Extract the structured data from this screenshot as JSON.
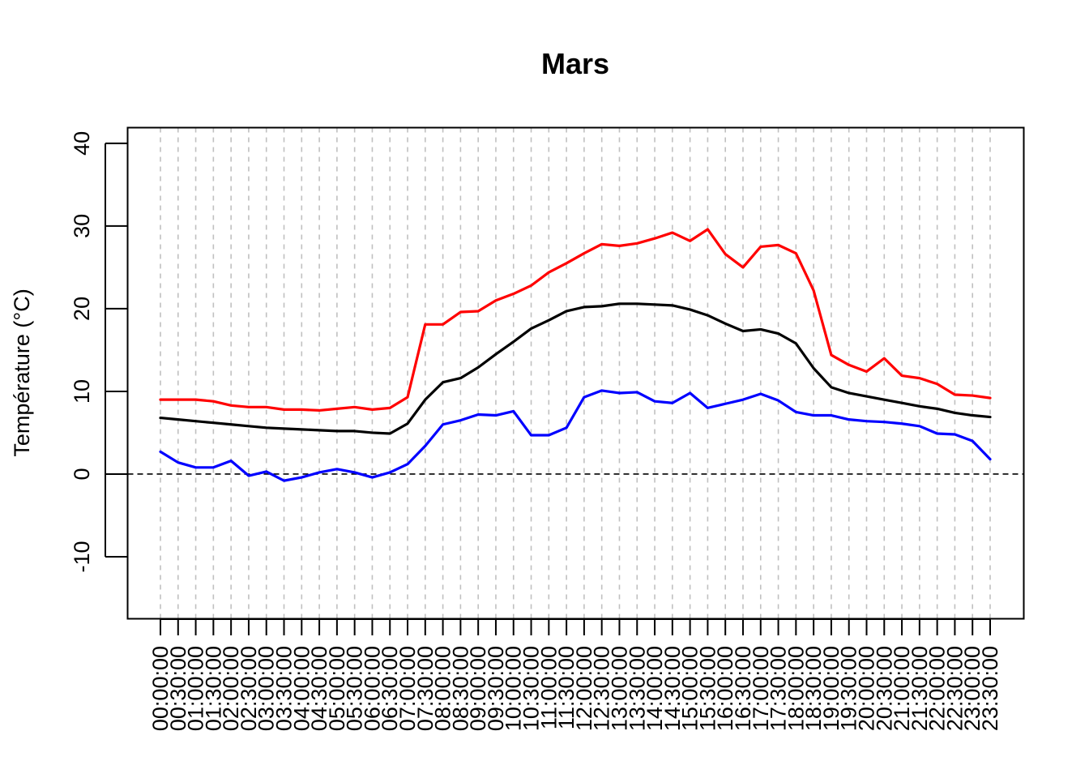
{
  "chart_data": {
    "type": "line",
    "title": "Mars",
    "xlabel": "",
    "ylabel": "Température (°C)",
    "ylim": [
      -17.5,
      41.9
    ],
    "yticks": [
      -10,
      0,
      10,
      20,
      30,
      40
    ],
    "zero_line": 0,
    "vertical_grid": true,
    "x": [
      "00:00:00",
      "00:30:00",
      "01:00:00",
      "01:30:00",
      "02:00:00",
      "02:30:00",
      "03:00:00",
      "03:30:00",
      "04:00:00",
      "04:30:00",
      "05:00:00",
      "05:30:00",
      "06:00:00",
      "06:30:00",
      "07:00:00",
      "07:30:00",
      "08:00:00",
      "08:30:00",
      "09:00:00",
      "09:30:00",
      "10:00:00",
      "10:30:00",
      "11:00:00",
      "11:30:00",
      "12:00:00",
      "12:30:00",
      "13:00:00",
      "13:30:00",
      "14:00:00",
      "14:30:00",
      "15:00:00",
      "15:30:00",
      "16:00:00",
      "16:30:00",
      "17:00:00",
      "17:30:00",
      "18:00:00",
      "18:30:00",
      "19:00:00",
      "19:30:00",
      "20:00:00",
      "20:30:00",
      "21:00:00",
      "21:30:00",
      "22:00:00",
      "22:30:00",
      "23:00:00",
      "23:30:00"
    ],
    "series": [
      {
        "color": "#ff0000",
        "values": [
          9.0,
          9.0,
          9.0,
          8.8,
          8.3,
          8.1,
          8.1,
          7.8,
          7.8,
          7.7,
          7.9,
          8.1,
          7.8,
          8.0,
          9.3,
          18.1,
          18.1,
          19.6,
          19.7,
          21.0,
          21.8,
          22.8,
          24.4,
          25.5,
          26.7,
          27.8,
          27.6,
          27.9,
          28.5,
          29.2,
          28.2,
          29.6,
          26.6,
          25.0,
          27.5,
          27.7,
          26.7,
          22.2,
          14.4,
          13.2,
          12.4,
          14.0,
          11.9,
          11.6,
          10.9,
          9.6,
          9.5,
          9.2
        ]
      },
      {
        "color": "#000000",
        "values": [
          6.8,
          6.6,
          6.4,
          6.2,
          6.0,
          5.8,
          5.6,
          5.5,
          5.4,
          5.3,
          5.2,
          5.2,
          5.0,
          4.9,
          6.1,
          9.0,
          11.1,
          11.6,
          12.9,
          14.5,
          16.0,
          17.6,
          18.6,
          19.7,
          20.2,
          20.3,
          20.6,
          20.6,
          20.5,
          20.4,
          19.9,
          19.2,
          18.2,
          17.3,
          17.5,
          17.0,
          15.8,
          12.8,
          10.5,
          9.8,
          9.4,
          9.0,
          8.6,
          8.2,
          7.9,
          7.4,
          7.1,
          6.9
        ]
      },
      {
        "color": "#0000ff",
        "values": [
          2.7,
          1.4,
          0.8,
          0.8,
          1.6,
          -0.2,
          0.3,
          -0.8,
          -0.4,
          0.2,
          0.6,
          0.2,
          -0.4,
          0.2,
          1.2,
          3.4,
          6.0,
          6.5,
          7.2,
          7.1,
          7.6,
          4.7,
          4.7,
          5.6,
          9.3,
          10.1,
          9.8,
          9.9,
          8.8,
          8.6,
          9.8,
          8.0,
          8.5,
          9.0,
          9.7,
          8.9,
          7.5,
          7.1,
          7.1,
          6.6,
          6.4,
          6.3,
          6.1,
          5.8,
          4.9,
          4.8,
          4.0,
          1.8
        ]
      }
    ]
  }
}
